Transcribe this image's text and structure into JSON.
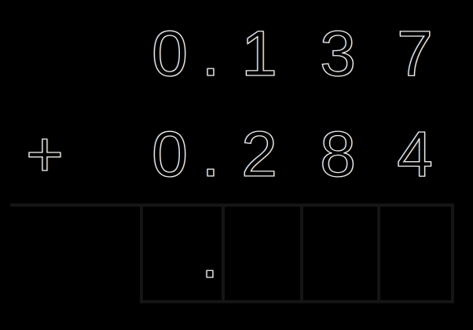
{
  "problem": {
    "operator": "+",
    "addend1": {
      "digits": [
        "0",
        ".",
        "1",
        "3",
        "7"
      ],
      "value": "0.137"
    },
    "addend2": {
      "digits": [
        "0",
        ".",
        "2",
        "8",
        "4"
      ],
      "value": "0.284"
    },
    "answer_row": {
      "decimal_point": ".",
      "box_count": 4,
      "boxes": [
        "",
        "",
        "",
        ""
      ]
    }
  },
  "colors": {
    "background": "#000000",
    "glyph_fill": "#000000",
    "glyph_outline": "#eeeeee",
    "grid_line": "#151515"
  }
}
